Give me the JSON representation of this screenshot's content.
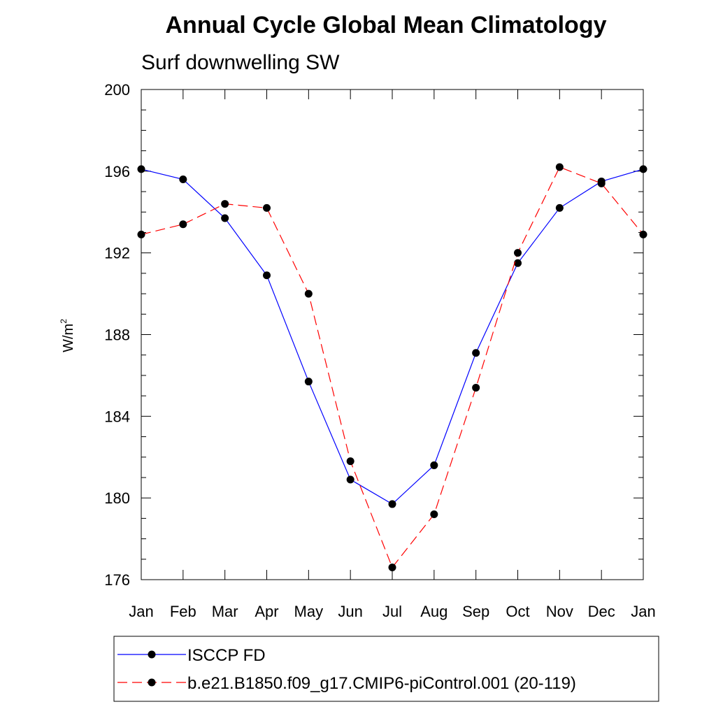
{
  "chart_data": {
    "type": "line",
    "title": "Annual Cycle Global Mean Climatology",
    "subtitle": "Surf downwelling SW",
    "xlabel": "",
    "ylabel": "W/m",
    "ylabel_superscript": "2",
    "categories": [
      "Jan",
      "Feb",
      "Mar",
      "Apr",
      "May",
      "Jun",
      "Jul",
      "Aug",
      "Sep",
      "Oct",
      "Nov",
      "Dec",
      "Jan"
    ],
    "ylim": [
      176,
      200
    ],
    "yticks": [
      176,
      180,
      184,
      188,
      192,
      196,
      200
    ],
    "grid": false,
    "legend_position": "bottom",
    "series": [
      {
        "name": "ISCCP FD",
        "color": "#0000ff",
        "dash": "solid",
        "values": [
          196.1,
          195.6,
          193.7,
          190.9,
          185.7,
          180.9,
          179.7,
          181.6,
          187.1,
          191.5,
          194.2,
          195.5,
          196.1
        ]
      },
      {
        "name": "b.e21.B1850.f09_g17.CMIP6-piControl.001 (20-119)",
        "color": "#ff0000",
        "dash": "dashed",
        "values": [
          192.9,
          193.4,
          194.4,
          194.2,
          190.0,
          181.8,
          176.6,
          179.2,
          185.4,
          192.0,
          196.2,
          195.4,
          192.9
        ]
      }
    ]
  }
}
